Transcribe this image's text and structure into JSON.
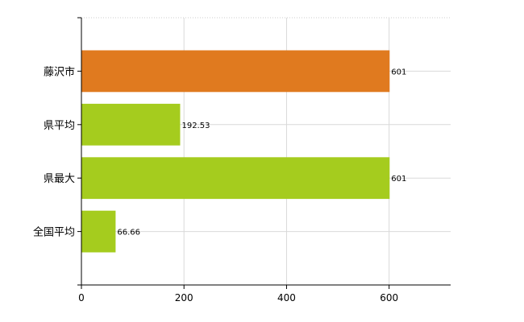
{
  "chart_data": {
    "type": "bar",
    "orientation": "horizontal",
    "categories": [
      "藤沢市",
      "県平均",
      "県最大",
      "全国平均"
    ],
    "values": [
      601,
      192.53,
      601,
      66.66
    ],
    "value_labels": [
      "601",
      "192.53",
      "601",
      "66.66"
    ],
    "bar_colors": [
      "#e07a1f",
      "#a5cc1e",
      "#a5cc1e",
      "#a5cc1e"
    ],
    "xlim": [
      0,
      720
    ],
    "x_ticks": [
      0,
      200,
      400,
      600
    ],
    "x_tick_labels": [
      "0",
      "200",
      "400",
      "600"
    ],
    "grid": true,
    "legend": "none"
  }
}
